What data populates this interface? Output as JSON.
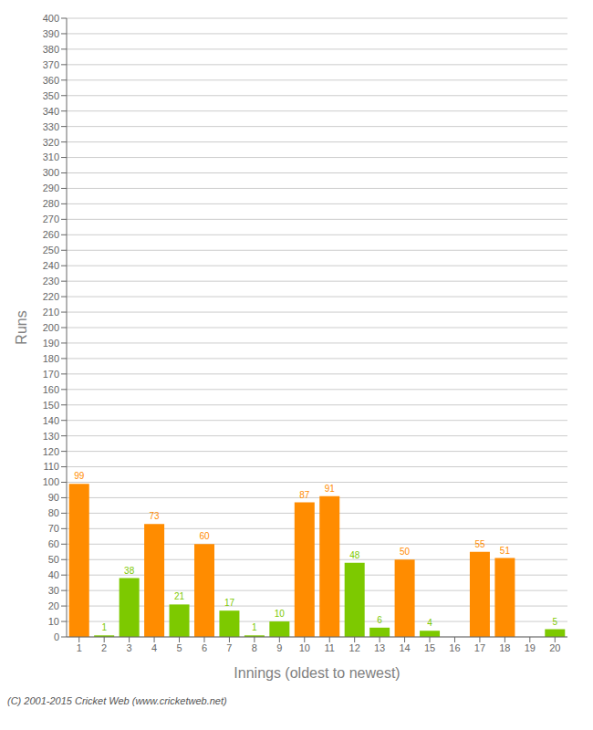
{
  "chart_data": {
    "type": "bar",
    "categories": [
      "1",
      "2",
      "3",
      "4",
      "5",
      "6",
      "7",
      "8",
      "9",
      "10",
      "11",
      "12",
      "13",
      "14",
      "15",
      "16",
      "17",
      "18",
      "19",
      "20"
    ],
    "values": [
      99,
      1,
      38,
      73,
      21,
      60,
      17,
      1,
      10,
      87,
      91,
      48,
      6,
      50,
      4,
      0,
      55,
      51,
      0,
      5
    ],
    "colors": [
      "#FF8C00",
      "#7DC900",
      "#7DC900",
      "#FF8C00",
      "#7DC900",
      "#FF8C00",
      "#7DC900",
      "#7DC900",
      "#7DC900",
      "#FF8C00",
      "#FF8C00",
      "#7DC900",
      "#7DC900",
      "#FF8C00",
      "#7DC900",
      "#FF8C00",
      "#FF8C00",
      "#FF8C00",
      "#7DC900",
      "#7DC900"
    ],
    "x_label": "Innings (oldest to newest)",
    "y_label": "Runs",
    "ylim": [
      0,
      400
    ],
    "yticks": [
      0,
      10,
      20,
      30,
      40,
      50,
      60,
      70,
      80,
      90,
      100,
      110,
      120,
      130,
      140,
      150,
      160,
      170,
      180,
      190,
      200,
      210,
      220,
      230,
      240,
      250,
      260,
      270,
      280,
      290,
      300,
      310,
      320,
      330,
      340,
      350,
      360,
      370,
      380,
      390,
      400
    ],
    "grid": true,
    "data_labels": true,
    "annotations": [
      "(C) 2001-2015 Cricket Web (www.cricketweb.net)"
    ]
  }
}
